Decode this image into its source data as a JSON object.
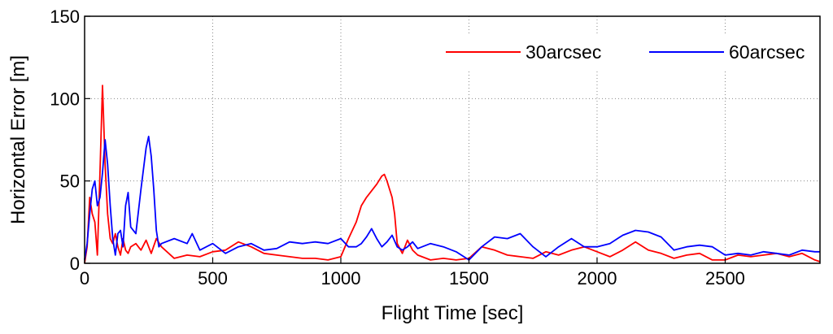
{
  "chart_data": {
    "type": "line",
    "xlabel": "Flight Time [sec]",
    "ylabel": "Horizontal Error [m]",
    "xlim": [
      0,
      2870
    ],
    "ylim": [
      0,
      150
    ],
    "xticks": [
      0,
      500,
      1000,
      1500,
      2000,
      2500
    ],
    "yticks": [
      0,
      50,
      100,
      150
    ],
    "grid": true,
    "legend_position": "top-right",
    "series": [
      {
        "name": "30arcsec",
        "color": "#ff0000",
        "x": [
          0,
          10,
          20,
          30,
          40,
          50,
          60,
          70,
          80,
          90,
          100,
          110,
          120,
          130,
          140,
          150,
          160,
          170,
          180,
          200,
          220,
          240,
          260,
          280,
          300,
          350,
          400,
          450,
          500,
          550,
          600,
          650,
          700,
          750,
          800,
          850,
          900,
          950,
          1000,
          1030,
          1060,
          1080,
          1100,
          1120,
          1140,
          1160,
          1170,
          1180,
          1200,
          1210,
          1220,
          1240,
          1260,
          1280,
          1300,
          1350,
          1400,
          1450,
          1500,
          1550,
          1600,
          1650,
          1700,
          1750,
          1800,
          1850,
          1900,
          1950,
          2000,
          2050,
          2100,
          2150,
          2200,
          2250,
          2300,
          2350,
          2400,
          2450,
          2500,
          2550,
          2600,
          2650,
          2700,
          2750,
          2800,
          2850,
          2870
        ],
        "values": [
          0,
          10,
          40,
          30,
          25,
          5,
          55,
          108,
          60,
          30,
          15,
          12,
          18,
          10,
          5,
          15,
          8,
          6,
          10,
          12,
          8,
          14,
          6,
          15,
          10,
          3,
          5,
          4,
          7,
          8,
          13,
          10,
          6,
          5,
          4,
          3,
          3,
          2,
          4,
          15,
          25,
          35,
          40,
          44,
          48,
          53,
          54,
          50,
          40,
          30,
          12,
          6,
          14,
          8,
          5,
          2,
          3,
          2,
          3,
          10,
          8,
          5,
          4,
          3,
          7,
          5,
          8,
          10,
          7,
          4,
          8,
          13,
          8,
          6,
          3,
          5,
          6,
          2,
          2,
          5,
          4,
          5,
          6,
          4,
          6,
          2,
          1
        ]
      },
      {
        "name": "60arcsec",
        "color": "#0000ff",
        "x": [
          0,
          10,
          20,
          30,
          40,
          50,
          60,
          70,
          80,
          90,
          100,
          110,
          120,
          130,
          140,
          150,
          160,
          170,
          180,
          200,
          220,
          240,
          250,
          260,
          270,
          280,
          290,
          300,
          350,
          400,
          420,
          450,
          500,
          550,
          600,
          650,
          700,
          750,
          800,
          850,
          900,
          950,
          1000,
          1030,
          1060,
          1080,
          1100,
          1120,
          1140,
          1160,
          1180,
          1200,
          1220,
          1240,
          1260,
          1280,
          1300,
          1350,
          1400,
          1450,
          1500,
          1550,
          1600,
          1650,
          1700,
          1750,
          1800,
          1850,
          1900,
          1950,
          2000,
          2050,
          2100,
          2150,
          2200,
          2250,
          2300,
          2350,
          2400,
          2450,
          2500,
          2550,
          2600,
          2650,
          2700,
          2750,
          2800,
          2850,
          2870
        ],
        "values": [
          2,
          12,
          30,
          45,
          50,
          35,
          40,
          55,
          75,
          60,
          35,
          15,
          5,
          18,
          20,
          10,
          35,
          43,
          22,
          18,
          45,
          70,
          77,
          65,
          45,
          20,
          10,
          12,
          15,
          12,
          18,
          8,
          12,
          6,
          10,
          12,
          8,
          9,
          13,
          12,
          13,
          12,
          15,
          10,
          10,
          12,
          16,
          21,
          15,
          10,
          13,
          17,
          10,
          8,
          10,
          13,
          9,
          12,
          10,
          7,
          2,
          10,
          16,
          15,
          18,
          10,
          4,
          10,
          15,
          10,
          10,
          12,
          17,
          20,
          19,
          16,
          8,
          10,
          11,
          10,
          5,
          6,
          5,
          7,
          6,
          5,
          8,
          7,
          7
        ]
      }
    ]
  }
}
